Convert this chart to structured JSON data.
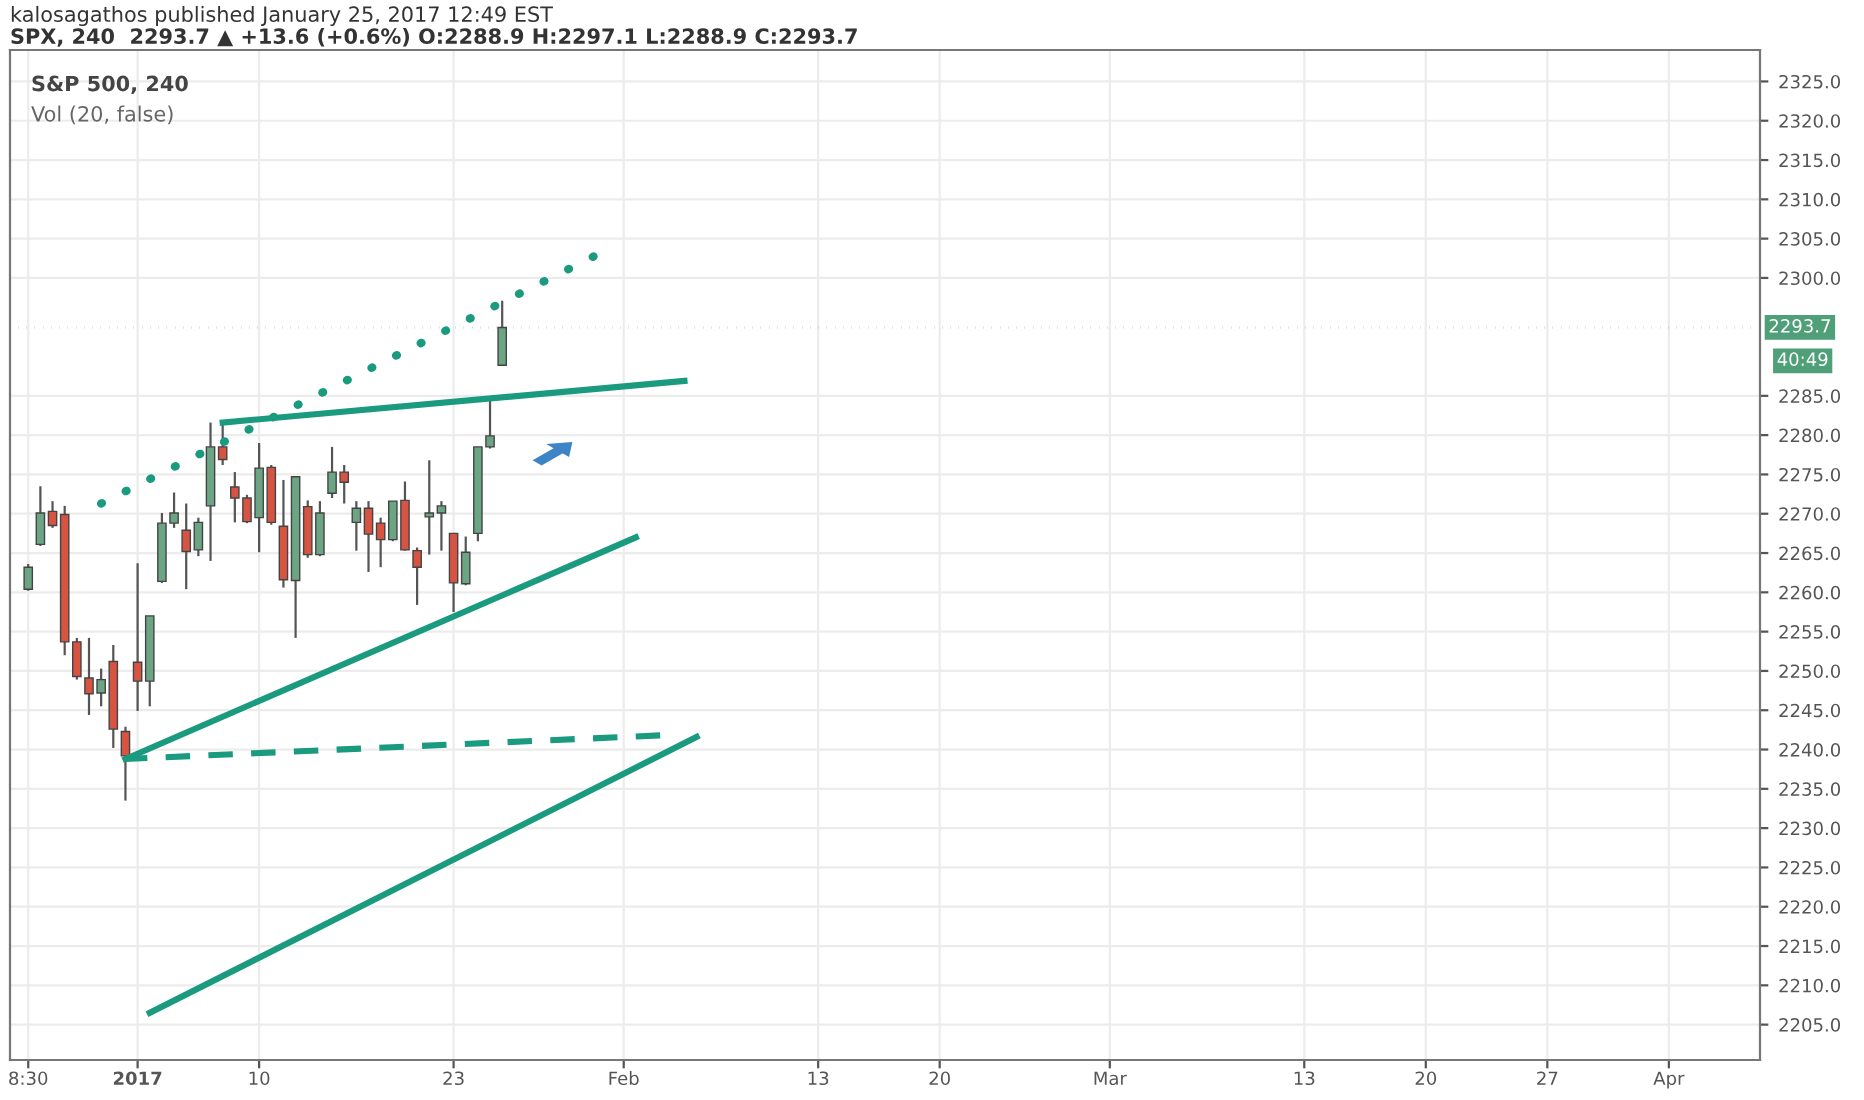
{
  "chart_data": {
    "type": "candlestick",
    "title": "kalosagathos published January 25, 2017 12:49 EST",
    "subtitle": "SPX, 240  2293.7 ▲ +13.6 (+0.6%) O:2288.9 H:2297.1 L:2288.9 C:2293.7",
    "annotations": [
      "S&P 500, 240",
      "Vol (20, false)",
      "40:49"
    ],
    "categories": [
      null,
      "8:30",
      null,
      null,
      null,
      null,
      null,
      null,
      null,
      null,
      "2017",
      null,
      null,
      null,
      null,
      null,
      null,
      null,
      null,
      null,
      "10",
      null,
      null,
      null,
      null,
      null,
      null,
      null,
      null,
      null,
      null,
      null,
      null,
      null,
      null,
      null,
      "23",
      null,
      null,
      null,
      null,
      null,
      null,
      null,
      null,
      null,
      null,
      null,
      null,
      null,
      "Feb",
      null,
      null,
      null,
      null,
      null,
      null,
      null,
      null,
      null,
      null,
      null,
      null,
      null,
      null,
      null,
      "13",
      null,
      null,
      null,
      null,
      null,
      null,
      null,
      null,
      null,
      "20",
      null,
      null,
      null,
      null,
      null,
      null,
      null,
      null,
      null,
      null,
      null,
      null,
      null,
      "Mar",
      null,
      null,
      null,
      null,
      null,
      null,
      null,
      null,
      null,
      null,
      null,
      null,
      null,
      null,
      null,
      "13",
      null,
      null,
      null,
      null,
      null,
      null,
      null,
      null,
      null,
      "20",
      null,
      null,
      null,
      null,
      null,
      null,
      null,
      null,
      null,
      "27",
      null,
      null,
      null,
      null,
      null,
      null,
      null,
      null,
      null,
      "Apr",
      null,
      null,
      null,
      null,
      null,
      null,
      null
    ],
    "ohlc": [
      null,
      [
        2260.4,
        2263.6,
        2260.2,
        2263.2
      ],
      [
        2266.1,
        2273.5,
        2265.9,
        2270.1
      ],
      [
        2270.3,
        2271.6,
        2268.2,
        2268.5
      ],
      [
        2269.9,
        2271.0,
        2252.0,
        2253.7
      ],
      [
        2253.7,
        2254.2,
        2248.9,
        2249.3
      ],
      [
        2249.1,
        2254.2,
        2244.4,
        2247.1
      ],
      [
        2247.2,
        2250.3,
        2245.5,
        2248.9
      ],
      [
        2251.2,
        2253.3,
        2240.2,
        2242.6
      ],
      [
        2242.3,
        2242.9,
        2233.5,
        2239.2
      ],
      [
        2251.1,
        2263.7,
        2244.9,
        2248.7
      ],
      [
        2248.7,
        2257.0,
        2245.5,
        2257.0
      ],
      [
        2261.4,
        2270.1,
        2261.2,
        2268.8
      ],
      [
        2268.8,
        2272.7,
        2268.2,
        2270.1
      ],
      [
        2267.9,
        2271.3,
        2260.4,
        2265.2
      ],
      [
        2265.4,
        2269.5,
        2264.6,
        2268.9
      ],
      [
        2271.0,
        2281.6,
        2264.0,
        2278.5
      ],
      [
        2278.5,
        2281.6,
        2276.2,
        2276.9
      ],
      [
        2273.4,
        2275.3,
        2268.9,
        2272.0
      ],
      [
        2272.0,
        2272.4,
        2268.8,
        2269.0
      ],
      [
        2269.5,
        2279.0,
        2265.1,
        2275.8
      ],
      [
        2275.9,
        2276.2,
        2268.6,
        2268.9
      ],
      [
        2268.4,
        2274.3,
        2260.6,
        2261.6
      ],
      [
        2261.5,
        2274.7,
        2254.2,
        2274.7
      ],
      [
        2270.9,
        2271.7,
        2264.4,
        2264.8
      ],
      [
        2264.8,
        2271.6,
        2264.6,
        2270.1
      ],
      [
        2272.6,
        2278.5,
        2272.0,
        2275.3
      ],
      [
        2275.3,
        2276.2,
        2271.3,
        2274.0
      ],
      [
        2268.9,
        2271.6,
        2265.3,
        2270.7
      ],
      [
        2270.7,
        2271.6,
        2262.6,
        2267.4
      ],
      [
        2268.8,
        2269.5,
        2263.2,
        2266.7
      ],
      [
        2266.7,
        2271.6,
        2266.5,
        2271.6
      ],
      [
        2271.7,
        2274.1,
        2265.3,
        2265.4
      ],
      [
        2265.3,
        2265.7,
        2258.4,
        2263.2
      ],
      [
        2269.6,
        2276.8,
        2264.8,
        2270.1
      ],
      [
        2270.1,
        2271.6,
        2265.3,
        2271.0
      ],
      [
        2267.5,
        2267.5,
        2257.5,
        2261.2
      ],
      [
        2261.1,
        2267.1,
        2260.9,
        2265.1
      ],
      [
        2267.5,
        2278.5,
        2266.5,
        2278.5
      ],
      [
        2278.5,
        2284.6,
        2278.3,
        2279.9
      ],
      [
        2288.9,
        2297.1,
        2288.9,
        2293.7
      ],
      null,
      null,
      null,
      null,
      null,
      null,
      null,
      null,
      null,
      null,
      null,
      null,
      null,
      null,
      null,
      null,
      null,
      null,
      null,
      null,
      null,
      null,
      null,
      null,
      null,
      null,
      null,
      null,
      null,
      null,
      null,
      null,
      null,
      null,
      null,
      null,
      null,
      null,
      null,
      null,
      null,
      null,
      null,
      null,
      null,
      null,
      null,
      null,
      null,
      null,
      null,
      null,
      null,
      null,
      null,
      null,
      null,
      null,
      null,
      null,
      null,
      null,
      null,
      null,
      null,
      null,
      null,
      null,
      null,
      null,
      null,
      null,
      null,
      null,
      null,
      null,
      null,
      null,
      null,
      null,
      null,
      null,
      null,
      null,
      null,
      null,
      null,
      null,
      null,
      null,
      null,
      null,
      null,
      null,
      null,
      null,
      null,
      null,
      null,
      null,
      null,
      null,
      null
    ],
    "colors": [
      null,
      "#6ba583",
      "#6ba583",
      "#d75442",
      "#d75442",
      "#d75442",
      "#d75442",
      "#6ba583",
      "#d75442",
      "#d75442",
      "#d75442",
      "#6ba583",
      "#6ba583",
      "#6ba583",
      "#d75442",
      "#6ba583",
      "#6ba583",
      "#d75442",
      "#d75442",
      "#d75442",
      "#6ba583",
      "#d75442",
      "#d75442",
      "#6ba583",
      "#d75442",
      "#6ba583",
      "#6ba583",
      "#d75442",
      "#6ba583",
      "#d75442",
      "#d75442",
      "#6ba583",
      "#d75442",
      "#d75442",
      "#6ba583",
      "#6ba583",
      "#d75442",
      "#6ba583",
      "#6ba583",
      "#6ba583",
      "#6ba583",
      null,
      null,
      null,
      null,
      null,
      null,
      null,
      null,
      null,
      null,
      null,
      null,
      null,
      null,
      null,
      null,
      null,
      null,
      null,
      null,
      null,
      null,
      null,
      null,
      null,
      null,
      null,
      null,
      null,
      null,
      null,
      null,
      null,
      null,
      null,
      null,
      null,
      null,
      null,
      null,
      null,
      null,
      null,
      null,
      null,
      null,
      null,
      null,
      null,
      null,
      null,
      null,
      null,
      null,
      null,
      null,
      null,
      null,
      null,
      null,
      null,
      null,
      null,
      null,
      null,
      null,
      null,
      null,
      null,
      null,
      null,
      null,
      null,
      null,
      null,
      null,
      null,
      null,
      null,
      null,
      null,
      null,
      null,
      null,
      null,
      null,
      null,
      null,
      null,
      null,
      null,
      null,
      null,
      null,
      null,
      null,
      null,
      null,
      null,
      null,
      null,
      null,
      null
    ],
    "series": [
      {
        "type": "line",
        "color": "#1a9a7e",
        "line_style": "dotted",
        "values": [
          null,
          null,
          null,
          null,
          null,
          null,
          null,
          2271.3,
          null,
          null,
          null,
          null,
          null,
          null,
          null,
          null,
          null,
          null,
          null,
          null,
          null,
          null,
          null,
          null,
          null,
          null,
          null,
          null,
          null,
          null,
          null,
          null,
          null,
          null,
          null,
          null,
          null,
          null,
          null,
          null,
          null,
          null,
          null,
          null,
          null,
          null,
          null,
          null,
          2303.1,
          null,
          null,
          null,
          null,
          null,
          null,
          null,
          null,
          null,
          null,
          null,
          null,
          null,
          null,
          null,
          null,
          null,
          null,
          null,
          null,
          null,
          null,
          null,
          null,
          null,
          null,
          null,
          null,
          null,
          null,
          null,
          null,
          null,
          null,
          null,
          null,
          null,
          null,
          null,
          null,
          null,
          null,
          null,
          null,
          null,
          null,
          null,
          null,
          null,
          null,
          null,
          null,
          null,
          null,
          null,
          null,
          null,
          null,
          null,
          null,
          null,
          null,
          null,
          null,
          null,
          null,
          null,
          null,
          null,
          null,
          null,
          null,
          null,
          null,
          null,
          null,
          null,
          null,
          null,
          null,
          null,
          null,
          null,
          null,
          null,
          null,
          null,
          null,
          null,
          null,
          null,
          null,
          null,
          null,
          null
        ]
      },
      {
        "type": "line",
        "color": "#1a9a7e",
        "line_style": "solid",
        "values": [
          null,
          null,
          null,
          null,
          null,
          null,
          null,
          null,
          null,
          null,
          null,
          null,
          null,
          null,
          null,
          null,
          null,
          2281.6,
          null,
          null,
          null,
          null,
          null,
          null,
          null,
          null,
          null,
          null,
          null,
          null,
          null,
          null,
          null,
          null,
          null,
          null,
          null,
          null,
          null,
          null,
          null,
          null,
          null,
          null,
          null,
          null,
          null,
          null,
          null,
          null,
          null,
          null,
          null,
          null,
          null,
          2286.9,
          null,
          null,
          null,
          null,
          null,
          null,
          null,
          null,
          null,
          null,
          null,
          null,
          null,
          null,
          null,
          null,
          null,
          null,
          null,
          null,
          null,
          null,
          null,
          null,
          null,
          null,
          null,
          null,
          null,
          null,
          null,
          null,
          null,
          null,
          null,
          null,
          null,
          null,
          null,
          null,
          null,
          null,
          null,
          null,
          null,
          null,
          null,
          null,
          null,
          null,
          null,
          null,
          null,
          null,
          null,
          null,
          null,
          null,
          null,
          null,
          null,
          null,
          null,
          null,
          null,
          null,
          null,
          null,
          null,
          null,
          null,
          null,
          null,
          null,
          null,
          null,
          null,
          null,
          null,
          null,
          null,
          null,
          null,
          null,
          null,
          null,
          null,
          null
        ]
      },
      {
        "type": "line",
        "color": "#1a9a7e",
        "line_style": "solid",
        "values": [
          null,
          null,
          null,
          null,
          null,
          null,
          null,
          null,
          null,
          2238.8,
          null,
          null,
          null,
          null,
          null,
          null,
          null,
          null,
          null,
          null,
          null,
          null,
          null,
          null,
          null,
          null,
          null,
          null,
          null,
          null,
          null,
          null,
          null,
          null,
          null,
          null,
          null,
          null,
          null,
          null,
          null,
          null,
          null,
          null,
          null,
          null,
          null,
          null,
          null,
          null,
          null,
          2267.0,
          null,
          null,
          null,
          null,
          null,
          null,
          null,
          null,
          null,
          null,
          null,
          null,
          null,
          null,
          null,
          null,
          null,
          null,
          null,
          null,
          null,
          null,
          null,
          null,
          null,
          null,
          null,
          null,
          null,
          null,
          null,
          null,
          null,
          null,
          null,
          null,
          null,
          null,
          null,
          null,
          null,
          null,
          null,
          null,
          null,
          null,
          null,
          null,
          null,
          null,
          null,
          null,
          null,
          null,
          null,
          null,
          null,
          null,
          null,
          null,
          null,
          null,
          null,
          null,
          null,
          null,
          null,
          null,
          null,
          null,
          null,
          null,
          null,
          null,
          null,
          null,
          null,
          null,
          null,
          null,
          null,
          null,
          null,
          null,
          null,
          null,
          null,
          null,
          null,
          null,
          null,
          null
        ]
      },
      {
        "type": "line",
        "color": "#1a9a7e",
        "line_style": "dashed",
        "values": [
          null,
          null,
          null,
          null,
          null,
          null,
          null,
          null,
          null,
          2238.8,
          null,
          null,
          null,
          null,
          null,
          null,
          null,
          null,
          null,
          null,
          null,
          null,
          null,
          null,
          null,
          null,
          null,
          null,
          null,
          null,
          null,
          null,
          null,
          null,
          null,
          null,
          null,
          null,
          null,
          null,
          null,
          null,
          null,
          null,
          null,
          null,
          null,
          null,
          null,
          null,
          null,
          null,
          null,
          2241.8,
          null,
          null,
          null,
          null,
          null,
          null,
          null,
          null,
          null,
          null,
          null,
          null,
          null,
          null,
          null,
          null,
          null,
          null,
          null,
          null,
          null,
          null,
          null,
          null,
          null,
          null,
          null,
          null,
          null,
          null,
          null,
          null,
          null,
          null,
          null,
          null,
          null,
          null,
          null,
          null,
          null,
          null,
          null,
          null,
          null,
          null,
          null,
          null,
          null,
          null,
          null,
          null,
          null,
          null,
          null,
          null,
          null,
          null,
          null,
          null,
          null,
          null,
          null,
          null,
          null,
          null,
          null,
          null,
          null,
          null,
          null,
          null,
          null,
          null,
          null,
          null,
          null,
          null,
          null,
          null,
          null,
          null,
          null,
          null,
          null,
          null,
          null,
          null,
          null,
          null
        ]
      },
      {
        "type": "line",
        "color": "#1a9a7e",
        "line_style": "solid",
        "values": [
          null,
          null,
          null,
          null,
          null,
          null,
          null,
          null,
          null,
          null,
          null,
          2206.5,
          null,
          null,
          null,
          null,
          null,
          null,
          null,
          null,
          null,
          null,
          null,
          null,
          null,
          null,
          null,
          null,
          null,
          null,
          null,
          null,
          null,
          null,
          null,
          null,
          null,
          null,
          null,
          null,
          null,
          null,
          null,
          null,
          null,
          null,
          null,
          null,
          null,
          null,
          null,
          null,
          null,
          null,
          null,
          null,
          2241.6,
          null,
          null,
          null,
          null,
          null,
          null,
          null,
          null,
          null,
          null,
          null,
          null,
          null,
          null,
          null,
          null,
          null,
          null,
          null,
          null,
          null,
          null,
          null,
          null,
          null,
          null,
          null,
          null,
          null,
          null,
          null,
          null,
          null,
          null,
          null,
          null,
          null,
          null,
          null,
          null,
          null,
          null,
          null,
          null,
          null,
          null,
          null,
          null,
          null,
          null,
          null,
          null,
          null,
          null,
          null,
          null,
          null,
          null,
          null,
          null,
          null,
          null,
          null,
          null,
          null,
          null,
          null,
          null,
          null,
          null,
          null,
          null,
          null,
          null,
          null,
          null,
          null,
          null,
          null,
          null,
          null,
          null,
          null,
          null,
          null,
          null,
          null
        ]
      }
    ],
    "ref_lines": [
      {
        "axis": "y",
        "value": 2293.7,
        "label": "2293.7",
        "color": "#4f9f78",
        "line_style": "dotted"
      }
    ],
    "ylim": [
      2200.5,
      2329.0
    ],
    "yticks": [
      {
        "value": 2205,
        "label": "2205.0"
      },
      {
        "value": 2210,
        "label": "2210.0"
      },
      {
        "value": 2215,
        "label": "2215.0"
      },
      {
        "value": 2220,
        "label": "2220.0"
      },
      {
        "value": 2225,
        "label": "2225.0"
      },
      {
        "value": 2230,
        "label": "2230.0"
      },
      {
        "value": 2235,
        "label": "2235.0"
      },
      {
        "value": 2240,
        "label": "2240.0"
      },
      {
        "value": 2245,
        "label": "2245.0"
      },
      {
        "value": 2250,
        "label": "2250.0"
      },
      {
        "value": 2255,
        "label": "2255.0"
      },
      {
        "value": 2260,
        "label": "2260.0"
      },
      {
        "value": 2265,
        "label": "2265.0"
      },
      {
        "value": 2270,
        "label": "2270.0"
      },
      {
        "value": 2275,
        "label": "2275.0"
      },
      {
        "value": 2280,
        "label": "2280.0"
      },
      {
        "value": 2285,
        "label": "2285.0"
      },
      {
        "value": 2300,
        "label": "2300.0"
      },
      {
        "value": 2305,
        "label": "2305.0"
      },
      {
        "value": 2310,
        "label": "2310.0"
      },
      {
        "value": 2315,
        "label": "2315.0"
      },
      {
        "value": 2320,
        "label": "2320.0"
      },
      {
        "value": 2325,
        "label": "2325.0"
      }
    ],
    "grid": true
  }
}
